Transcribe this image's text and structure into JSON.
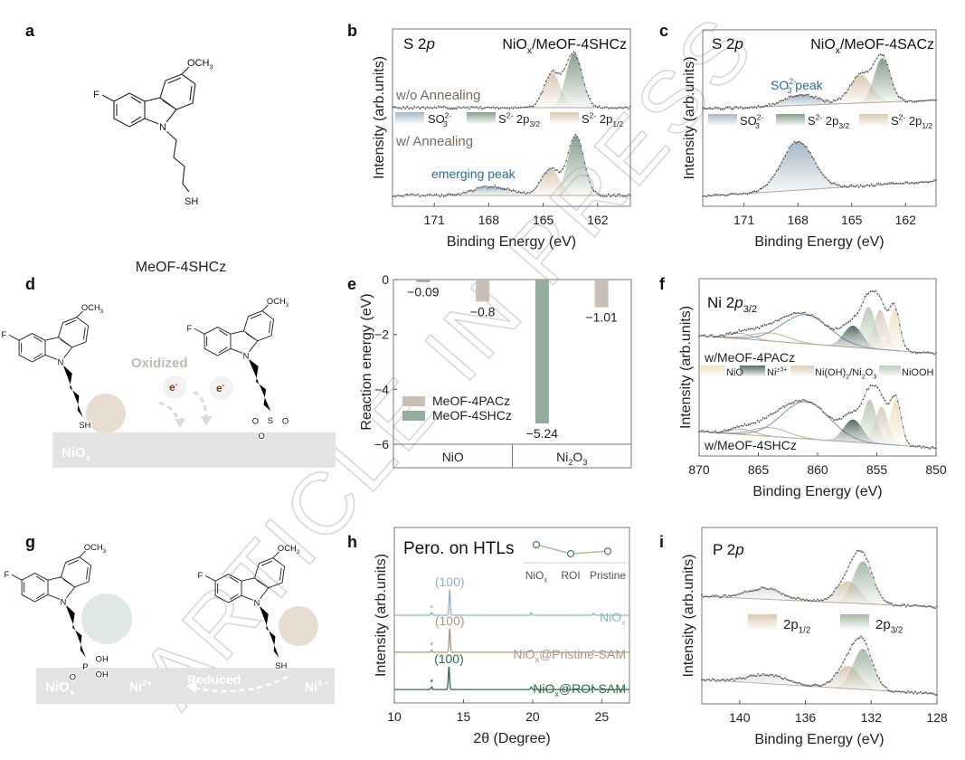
{
  "figure": {
    "panel_letters": [
      "a",
      "b",
      "c",
      "d",
      "e",
      "f",
      "g",
      "h",
      "i"
    ],
    "watermark": "ARTICLE IN PRESS",
    "a": {
      "molecule_name": "MeOF-4SHCz"
    },
    "chem": {
      "och3": [
        "OCH",
        {
          "sub": "3"
        }
      ],
      "f": "F",
      "n": "N",
      "sh": "SH",
      "s": "S",
      "o": "O",
      "p": "P",
      "oh": "OH"
    },
    "d": {
      "substrate": [
        "NiO",
        {
          "sub": "x"
        }
      ],
      "process": "Oxidized",
      "electron": [
        "e",
        {
          "sup": "-"
        }
      ]
    },
    "g": {
      "substrate": [
        "NiO",
        {
          "sub": "x"
        }
      ],
      "ni2": [
        "Ni",
        {
          "sup": "2+"
        }
      ],
      "process": "Reduced",
      "ni3": [
        "Ni",
        {
          "sup": "3 +"
        }
      ]
    },
    "colors": {
      "sulfur_circle": "#e3dbd0",
      "phosphorus_circle": "#e1e9e6",
      "substrate": "#e3e3e3",
      "electron": "#8a3a10"
    }
  },
  "chart_data": [
    {
      "panel": "b",
      "type": "line",
      "title": [
        "S 2",
        {
          "i": "p"
        }
      ],
      "sample": [
        "NiO",
        {
          "sub": "x"
        },
        "/MeOF-4SHCz"
      ],
      "xlabel": "Binding Energy (eV)",
      "ylabel": "Intensity (arb.units)",
      "xlim": [
        173.3,
        160.2
      ],
      "ylim": [
        0,
        100
      ],
      "xticks": [
        171,
        168,
        165,
        162
      ],
      "legend": [
        {
          "label": [
            "SO",
            {
              "sup": "2-"
            },
            {
              "sub": "3"
            }
          ],
          "color": "#9fb3c4"
        },
        {
          "label": [
            "S",
            {
              "sup": "2-"
            },
            " 2p",
            {
              "sub": "3/2"
            }
          ],
          "color": "#7e9985"
        },
        {
          "label": [
            "S",
            {
              "sup": "2-"
            },
            " 2p",
            {
              "sub": "1/2"
            }
          ],
          "color": "#d8c6ae"
        }
      ],
      "annotation": [
        "emerging peak"
      ],
      "spectra": [
        {
          "name": "w/o Annealing",
          "baseline": [
            55.6,
            55.6
          ],
          "components": [
            {
              "legend": 2,
              "center": 164.5,
              "height": 19.4,
              "sigma": 0.45
            },
            {
              "legend": 1,
              "center": 163.3,
              "height": 30.6,
              "sigma": 0.45
            }
          ]
        },
        {
          "name": "w/ Annealing",
          "baseline": [
            6.1,
            6.1
          ],
          "components": [
            {
              "legend": 0,
              "center": 167.8,
              "height": 5,
              "sigma": 1.0
            },
            {
              "legend": 2,
              "center": 164.6,
              "height": 15,
              "sigma": 0.5
            },
            {
              "legend": 1,
              "center": 163.2,
              "height": 33.7,
              "sigma": 0.45
            }
          ]
        }
      ]
    },
    {
      "panel": "c",
      "type": "line",
      "title": [
        "S 2",
        {
          "i": "p"
        }
      ],
      "sample": [
        "NiO",
        {
          "sub": "x"
        },
        "/MeOF-4SACz"
      ],
      "xlabel": "Binding Energy (eV)",
      "ylabel": "Intensity (arb.units)",
      "xlim": [
        173.3,
        160.3
      ],
      "ylim": [
        0,
        100
      ],
      "xticks": [
        171,
        168,
        165,
        162
      ],
      "legend": [
        {
          "label": [
            "SO",
            {
              "sup": "2-"
            },
            {
              "sub": "3"
            }
          ],
          "color": "#9fb3c4"
        },
        {
          "label": [
            "S",
            {
              "sup": "2-"
            },
            " 2p",
            {
              "sub": "3/2"
            }
          ],
          "color": "#7e9985"
        },
        {
          "label": [
            "S",
            {
              "sup": "2-"
            },
            " 2p",
            {
              "sub": "1/2"
            }
          ],
          "color": "#d8c6ae"
        }
      ],
      "annotation": [
        "SO",
        {
          "sup": "2-"
        },
        {
          "sub": "3"
        },
        " peak"
      ],
      "spectra": [
        {
          "baseline": [
            55.1,
            60.2
          ],
          "components": [
            {
              "legend": 0,
              "center": 167.8,
              "height": 6,
              "sigma": 0.9
            },
            {
              "legend": 2,
              "center": 164.5,
              "height": 16,
              "sigma": 0.6
            },
            {
              "legend": 1,
              "center": 163.3,
              "height": 25,
              "sigma": 0.45
            }
          ]
        },
        {
          "baseline": [
            5.6,
            14.3
          ],
          "components": [
            {
              "legend": 0,
              "center": 168.0,
              "height": 27.5,
              "sigma": 0.9
            }
          ]
        }
      ]
    },
    {
      "panel": "e",
      "type": "bar",
      "categories": [
        [
          "NiO"
        ],
        [
          "Ni",
          {
            "sub": "2"
          },
          "O",
          {
            "sub": "3"
          }
        ]
      ],
      "ylabel": "Reaction energy (eV)",
      "ylim": [
        -6,
        0
      ],
      "yticks": [
        0,
        -2,
        -4,
        -6
      ],
      "legend_position": "bottom-left",
      "series": [
        {
          "name": "MeOF-4PACz",
          "color": "#c9bfb4",
          "values": [
            -0.8,
            -1.01
          ]
        },
        {
          "name": "MeOF-4SHCz",
          "color": "#94ac9d",
          "values": [
            -0.09,
            -5.24
          ]
        }
      ]
    },
    {
      "panel": "f",
      "type": "line",
      "title": [
        "Ni 2",
        {
          "i": "p"
        },
        {
          "sub": "3/2"
        }
      ],
      "xlabel": "Binding Energy (eV)",
      "ylabel": "Intensity (arb.units)",
      "xlim": [
        870,
        850
      ],
      "ylim": [
        0,
        100
      ],
      "xticks": [
        870,
        865,
        860,
        855,
        850
      ],
      "legend": [
        {
          "label": [
            "NiO"
          ],
          "color": "#efdfbd"
        },
        {
          "label": [
            "Ni",
            {
              "sup": "≥3+"
            }
          ],
          "color": "#4f625a"
        },
        {
          "label": [
            "Ni(OH)",
            {
              "sub": "2"
            },
            "/Ni",
            {
              "sub": "2"
            },
            "O",
            {
              "sub": "3"
            }
          ],
          "color": "#d8c9b8"
        },
        {
          "label": [
            "NiOOH"
          ],
          "color": "#b5c8b2"
        }
      ],
      "spectra": [
        {
          "name": "w/MeOF-4PACz",
          "baseline": [
            67.9,
            57.7
          ],
          "components": [
            {
              "color": "#bfae9c",
              "center": 866.5,
              "height": 3,
              "sigma": 1.0,
              "style": "line"
            },
            {
              "color": "#bfae9c",
              "center": 864,
              "height": 4.6,
              "sigma": 1.5,
              "style": "line"
            },
            {
              "color": "#7197bb",
              "center": 861,
              "height": 16.3,
              "sigma": 2.0,
              "style": "line"
            },
            {
              "legend": 1,
              "center": 857,
              "height": 12.2,
              "sigma": 0.8
            },
            {
              "legend": 3,
              "center": 855.7,
              "height": 23.5,
              "sigma": 0.6
            },
            {
              "legend": 2,
              "center": 854.7,
              "height": 22.4,
              "sigma": 0.55
            },
            {
              "legend": 0,
              "center": 853.5,
              "height": 23.5,
              "sigma": 0.45
            }
          ]
        },
        {
          "name": "w/MeOF-4SHCz",
          "baseline": [
            13.8,
            4.6
          ],
          "components": [
            {
              "color": "#bfae9c",
              "center": 866.3,
              "height": 3,
              "sigma": 1.0,
              "style": "line"
            },
            {
              "color": "#bfae9c",
              "center": 864,
              "height": 5,
              "sigma": 1.5,
              "style": "line"
            },
            {
              "color": "#7197bb",
              "center": 861,
              "height": 21,
              "sigma": 2.0,
              "style": "line"
            },
            {
              "legend": 1,
              "center": 857,
              "height": 12.8,
              "sigma": 0.8
            },
            {
              "legend": 3,
              "center": 855.6,
              "height": 24.5,
              "sigma": 0.6
            },
            {
              "legend": 2,
              "center": 854.6,
              "height": 21,
              "sigma": 0.55
            },
            {
              "legend": 0,
              "center": 853.4,
              "height": 26,
              "sigma": 0.45
            }
          ]
        }
      ]
    },
    {
      "panel": "h",
      "type": "line",
      "title": "Pero. on HTLs",
      "xlabel": "2θ (Degree)",
      "ylabel": "Intensity (arb.units)",
      "xlim": [
        10,
        27
      ],
      "ylim": [
        0,
        100
      ],
      "xticks": [
        10,
        15,
        20,
        25
      ],
      "peak_label": "(100)",
      "impurity_marker": "*",
      "series": [
        {
          "name": [
            "NiO",
            {
              "sub": "x"
            }
          ],
          "color": "#8fb3c6",
          "offset": 50,
          "peaks": [
            [
              12.7,
              1.5
            ],
            [
              14.0,
              14.4
            ],
            [
              19.9,
              1.5
            ],
            [
              24.4,
              1.2
            ]
          ]
        },
        {
          "name": [
            "NiO",
            {
              "sub": "x"
            },
            "@Pristine-SAM"
          ],
          "color": "#a89880",
          "offset": 28.9,
          "peaks": [
            [
              12.7,
              1.2
            ],
            [
              14.0,
              13.4
            ],
            [
              19.9,
              1.3
            ],
            [
              24.4,
              1.0
            ]
          ]
        },
        {
          "name": [
            "NiO",
            {
              "sub": "x"
            },
            "@ROI-SAM"
          ],
          "color": "#2e6b4a",
          "offset": 7.7,
          "peaks": [
            [
              12.7,
              1.5
            ],
            [
              13.95,
              12.9
            ],
            [
              19.9,
              1.5
            ],
            [
              24.4,
              1.3
            ]
          ]
        }
      ],
      "inset": {
        "categories": [
          [
            "NiO",
            {
              "sub": "x"
            }
          ],
          [
            "ROI"
          ],
          [
            "Pristine"
          ]
        ],
        "relative_values": [
          1.0,
          0.72,
          0.8
        ],
        "color": "#4d7a5c"
      }
    },
    {
      "panel": "i",
      "type": "line",
      "title": [
        "P 2",
        {
          "i": "p"
        }
      ],
      "xlabel": "Binding Energy (eV)",
      "ylabel": "Intensity (arb.units)",
      "xlim": [
        142.3,
        128
      ],
      "ylim": [
        0,
        100
      ],
      "xticks": [
        140,
        136,
        132,
        128
      ],
      "legend": [
        {
          "label": [
            "2p",
            {
              "sub": "1/2"
            }
          ],
          "color": "#d8c6ae"
        },
        {
          "label": [
            "2p",
            {
              "sub": "3/2"
            }
          ],
          "color": "#9fb7a2"
        }
      ],
      "spectra": [
        {
          "baseline": [
            61,
            54.9
          ],
          "components": [
            {
              "color": "#e2e2e2",
              "center": 138.5,
              "height": 6,
              "sigma": 1.1
            },
            {
              "legend": 0,
              "center": 133.4,
              "height": 12.3,
              "sigma": 0.7
            },
            {
              "legend": 1,
              "center": 132.5,
              "height": 24,
              "sigma": 0.6
            }
          ]
        },
        {
          "baseline": [
            13.8,
            5.6
          ],
          "components": [
            {
              "color": "#e2e2e2",
              "center": 138.3,
              "height": 5,
              "sigma": 1.2
            },
            {
              "legend": 0,
              "center": 133.4,
              "height": 12.8,
              "sigma": 0.7
            },
            {
              "legend": 1,
              "center": 132.5,
              "height": 23,
              "sigma": 0.6
            }
          ]
        }
      ]
    }
  ]
}
